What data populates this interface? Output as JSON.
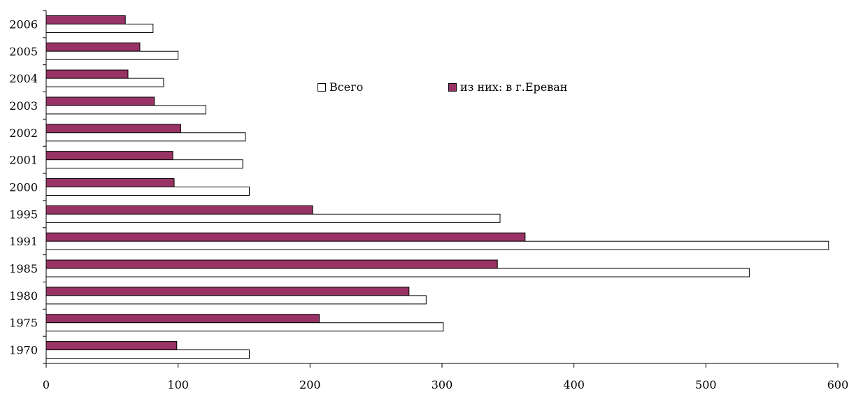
{
  "chart_data": {
    "type": "bar",
    "orientation": "horizontal",
    "categories": [
      "2006",
      "2005",
      "2004",
      "2003",
      "2002",
      "2001",
      "2000",
      "1995",
      "1991",
      "1985",
      "1980",
      "1975",
      "1970"
    ],
    "series": [
      {
        "name": "Всего",
        "color": "#ffffff",
        "values": [
          81,
          100,
          89,
          121,
          151,
          149,
          154,
          344,
          593,
          533,
          288,
          301,
          154
        ]
      },
      {
        "name": "из них: в г.Ереван",
        "color": "#993366",
        "values": [
          60,
          71,
          62,
          82,
          102,
          96,
          97,
          202,
          363,
          342,
          275,
          207,
          99
        ]
      }
    ],
    "xticks": [
      "0",
      "100",
      "200",
      "300",
      "400",
      "500",
      "600"
    ],
    "xlim": [
      0,
      600
    ],
    "grid": false,
    "legend": "top-center"
  },
  "legend": {
    "items": [
      {
        "label": "Всего",
        "color": "#ffffff"
      },
      {
        "label": "из них: в г.Ереван",
        "color": "#993366"
      }
    ]
  }
}
